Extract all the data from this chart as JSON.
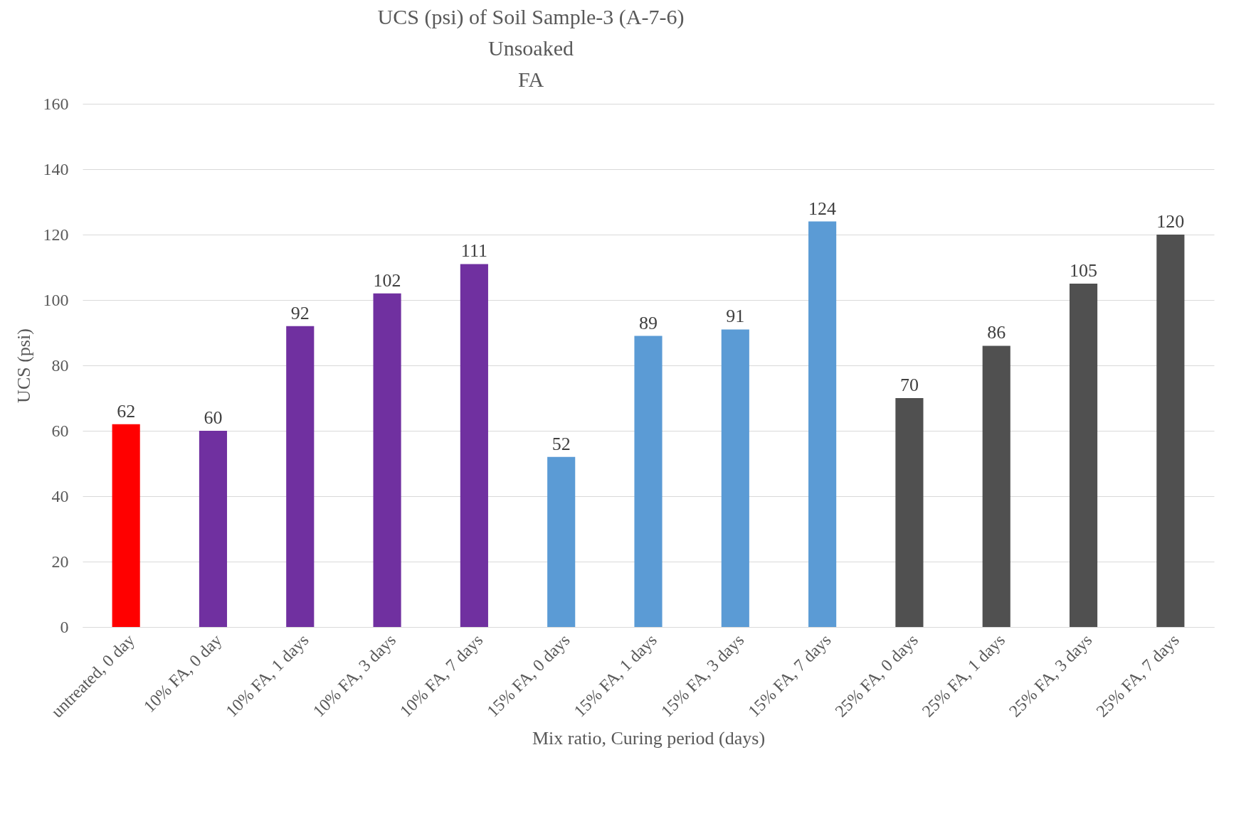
{
  "chart_data": {
    "type": "bar",
    "title": "UCS (psi) of Soil Sample-3 (A-7-6)\nUnsoaked\nFA",
    "xlabel": "Mix ratio, Curing period (days)",
    "ylabel": "UCS (psi)",
    "categories": [
      "untreated, 0 day",
      "10% FA, 0 day",
      "10% FA, 1 days",
      "10% FA, 3 days",
      "10% FA, 7 days",
      "15% FA, 0 days",
      "15% FA, 1 days",
      "15% FA, 3 days",
      "15% FA, 7 days",
      "25% FA, 0 days",
      "25% FA, 1 days",
      "25% FA, 3 days",
      "25% FA, 7 days"
    ],
    "values": [
      62,
      60,
      92,
      102,
      111,
      52,
      89,
      91,
      124,
      70,
      86,
      105,
      120
    ],
    "colors": [
      "#ff0000",
      "#7030a0",
      "#7030a0",
      "#7030a0",
      "#7030a0",
      "#5b9bd5",
      "#5b9bd5",
      "#5b9bd5",
      "#5b9bd5",
      "#505050",
      "#505050",
      "#505050",
      "#505050"
    ],
    "ylim": [
      0,
      160
    ],
    "yticks": [
      0,
      20,
      40,
      60,
      80,
      100,
      120,
      140,
      160
    ],
    "grid": "y",
    "data_labels": true,
    "legend": false
  }
}
